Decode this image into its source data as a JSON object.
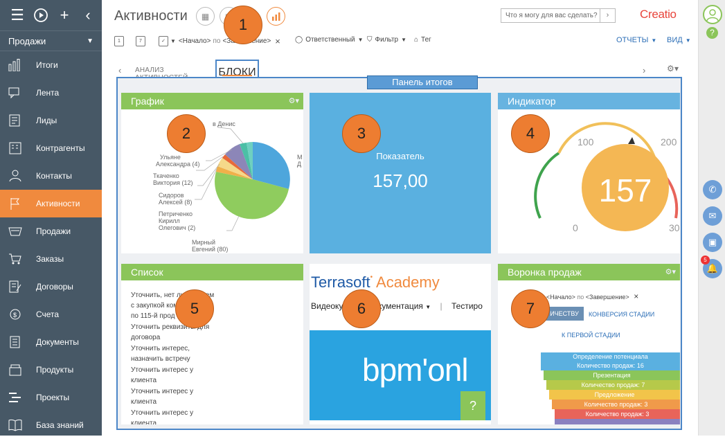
{
  "app": {
    "title": "Активности",
    "logo": "Creatio",
    "search_placeholder": "Что я могу для вас сделать?",
    "workspace": "Продажи"
  },
  "sidebar": {
    "items": [
      {
        "label": "Итоги",
        "icon": "bar-chart-icon"
      },
      {
        "label": "Лента",
        "icon": "feed-icon"
      },
      {
        "label": "Лиды",
        "icon": "leads-icon"
      },
      {
        "label": "Контрагенты",
        "icon": "building-icon"
      },
      {
        "label": "Контакты",
        "icon": "person-icon"
      },
      {
        "label": "Активности",
        "icon": "flag-icon",
        "active": true
      },
      {
        "label": "Продажи",
        "icon": "basket-icon"
      },
      {
        "label": "Заказы",
        "icon": "cart-icon"
      },
      {
        "label": "Договоры",
        "icon": "contract-icon"
      },
      {
        "label": "Счета",
        "icon": "invoice-icon"
      },
      {
        "label": "Документы",
        "icon": "document-icon"
      },
      {
        "label": "Продукты",
        "icon": "product-icon"
      },
      {
        "label": "Проекты",
        "icon": "projects-icon"
      },
      {
        "label": "База знаний",
        "icon": "book-icon"
      }
    ]
  },
  "filter_bar": {
    "start": "<Начало>",
    "to": "по",
    "end": "<Завершение>",
    "owner": "Ответственный",
    "filter": "Фильтр",
    "tag": "Тег",
    "reports": "ОТЧЕТЫ",
    "view": "ВИД"
  },
  "tabs": {
    "analysis": "АНАЛИЗ АКТИВНОСТЕЙ",
    "blocks": "БЛОКИ"
  },
  "panel_label": "Панель итогов",
  "widgets": {
    "chart": {
      "title": "График",
      "labels": [
        [
          "в Денис"
        ],
        [
          "Ульяне",
          "Александра (4)"
        ],
        [
          "Ткаченко",
          "Виктория (12)"
        ],
        [
          "Сидоров",
          "Алексей (8)"
        ],
        [
          "Петриченко",
          "Кирилл",
          "Олегович (2)"
        ],
        [
          "Мирный",
          "Евгений (80)"
        ],
        [
          "М",
          "Д"
        ]
      ]
    },
    "metric": {
      "label": "Показатель",
      "value": "157,00"
    },
    "indicator": {
      "title": "Индикатор",
      "value": "157",
      "min": "0",
      "mark_low": "100",
      "mark_high": "200",
      "max": "30"
    },
    "list": {
      "title": "Список",
      "items": [
        [
          "Уточнить, нет ли проблем",
          "с закупкой ком",
          "по 115-й прод"
        ],
        [
          "Уточнить реквизиты для",
          "договора"
        ],
        [
          "Уточнить интерес,",
          "назначить встречу"
        ],
        [
          "Уточнить интерес у",
          "клиента"
        ],
        [
          "Уточнить интерес у",
          "клиента"
        ],
        [
          "Уточнить интерес у",
          "клиента"
        ]
      ]
    },
    "web": {
      "brand": "Terrasoft",
      "brand_suffix": "Academy",
      "menu_video": "Видеокур",
      "menu_docs": "окументация",
      "menu_test": "Тестиро",
      "banner": "bpm'onl",
      "help": "?"
    },
    "funnel": {
      "title": "Воронка продаж",
      "filter_start": "<Начало>",
      "filter_to": "по",
      "filter_end": "<Завершение>",
      "btn_quantity": "ИЧЕСТВУ",
      "btn_conversion": "КОНВЕРСИЯ СТАДИИ",
      "link_first": "К ПЕРВОЙ СТАДИИ",
      "stages": [
        {
          "label": "Определение потенциала",
          "count": "Количество продаж: 16",
          "color": "#5ab0e0"
        },
        {
          "label": "Презентация",
          "count": "",
          "color": "#8bc55a"
        },
        {
          "label": "Количество продаж: 7",
          "count": "",
          "color": "#b6c94a"
        },
        {
          "label": "Предложение",
          "count": "",
          "color": "#f2c44a"
        },
        {
          "label": "Количество продаж: 3",
          "count": "",
          "color": "#f09a4a"
        },
        {
          "label": "Количество продаж: 3",
          "count": "",
          "color": "#e8645a"
        },
        {
          "label": "",
          "count": "",
          "color": "#8a80c0"
        }
      ]
    }
  },
  "markers": [
    "1",
    "2",
    "3",
    "4",
    "5",
    "6",
    "7"
  ],
  "rightbar": {
    "notif_count": "5"
  },
  "colors": {
    "accent": "#f08a3e",
    "sidebar": "#475866",
    "frame": "#4b86c8"
  }
}
